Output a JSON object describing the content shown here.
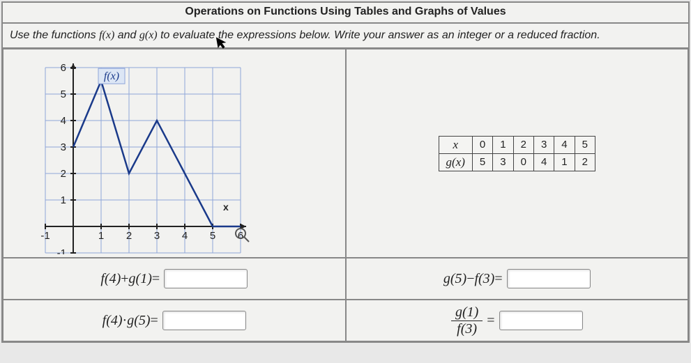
{
  "title": "Operations on Functions Using Tables and Graphs of Values",
  "instructions_pre": "Use the functions ",
  "instructions_f": "f(x)",
  "instructions_mid": " and ",
  "instructions_g": "g(x)",
  "instructions_post": " to evaluate the expressions below. Write your answer as an integer or a reduced fraction.",
  "graph": {
    "label": "f(x)",
    "xaxis_label": "x",
    "xlim": [
      -1,
      6
    ],
    "ylim": [
      -1,
      6
    ],
    "xticks": [
      -1,
      1,
      2,
      3,
      4,
      5,
      6
    ],
    "yticks": [
      -1,
      1,
      2,
      3,
      4,
      5,
      6
    ],
    "grid_color": "#8fa6d9",
    "axis_color": "#222222",
    "line_color": "#1a3a8a",
    "background": "#f2f2f0",
    "points": [
      [
        0,
        3
      ],
      [
        1,
        5.5
      ],
      [
        2,
        2
      ],
      [
        3,
        4
      ],
      [
        4,
        2
      ],
      [
        5,
        0
      ],
      [
        6,
        0
      ]
    ]
  },
  "gtable": {
    "row1_hdr": "x",
    "row2_hdr": "g(x)",
    "xs": [
      "0",
      "1",
      "2",
      "3",
      "4",
      "5"
    ],
    "gs": [
      "5",
      "3",
      "0",
      "4",
      "1",
      "2"
    ]
  },
  "q1": {
    "lhs_f": "f(4)",
    "op": " + ",
    "lhs_g": "g(1)",
    "eq": " = "
  },
  "q2": {
    "lhs_g": "g(5)",
    "op": " − ",
    "lhs_f": "f(3)",
    "eq": " = "
  },
  "q3": {
    "lhs_f": "f(4)",
    "op": " · ",
    "lhs_g": "g(5)",
    "eq": " = "
  },
  "q4": {
    "num": "g(1)",
    "den": "f(3)",
    "eq": " = "
  }
}
